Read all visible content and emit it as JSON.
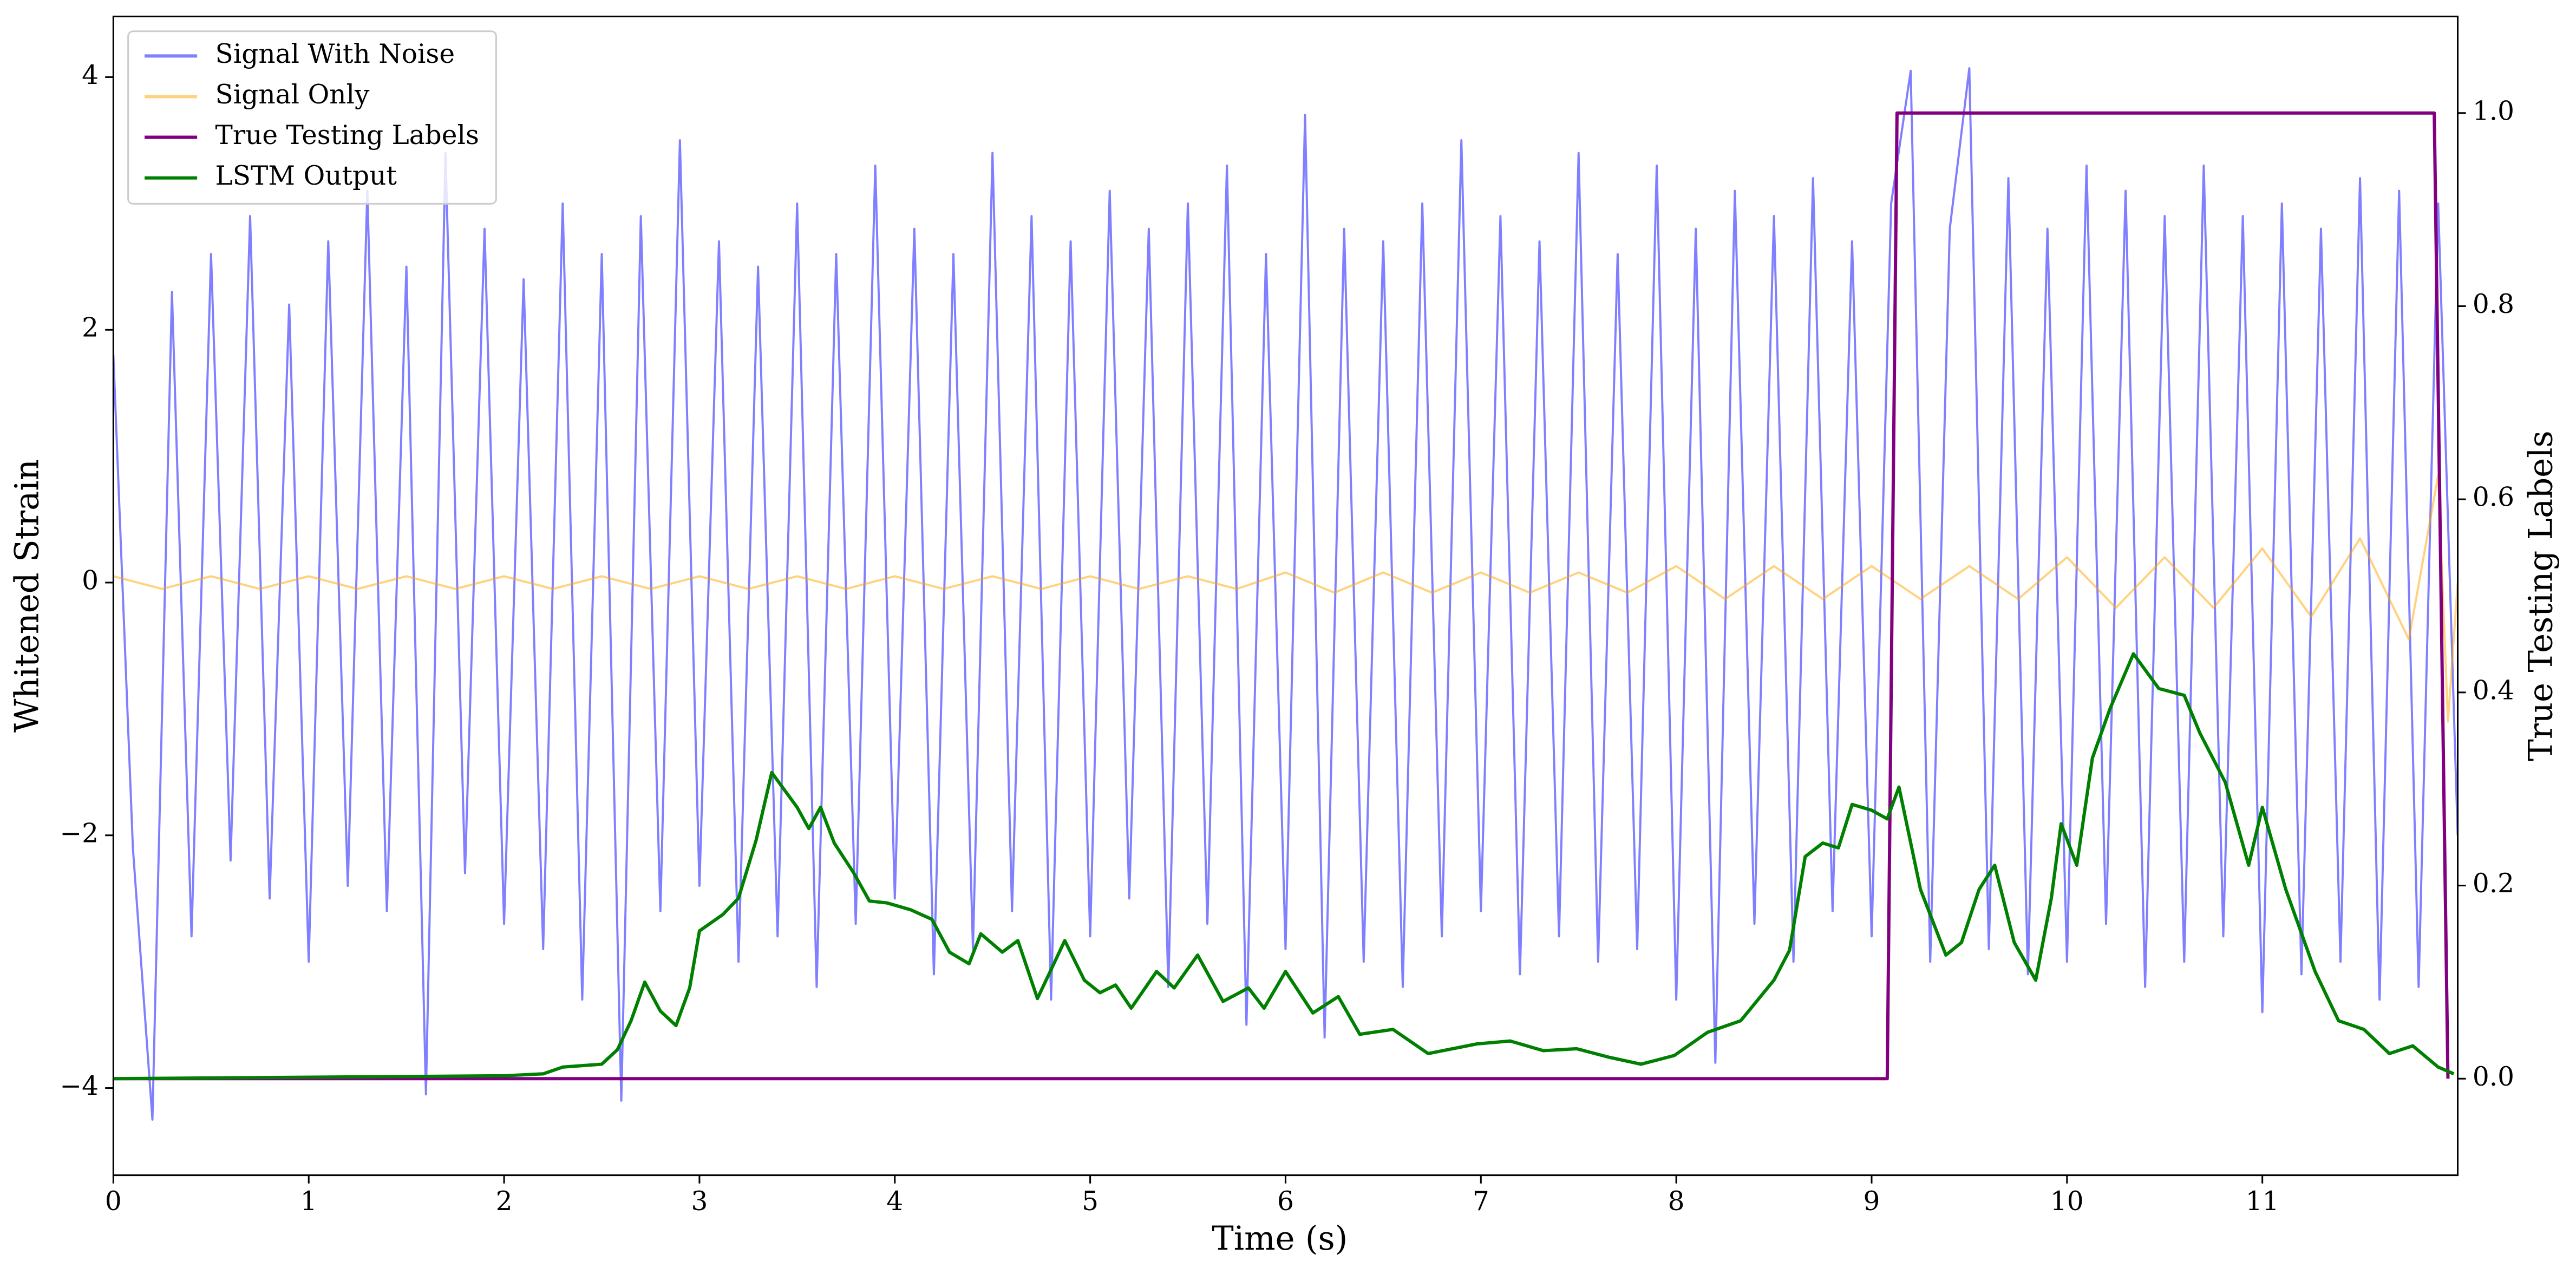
{
  "chart_data": {
    "type": "line",
    "xlabel": "Time (s)",
    "ylabel": "Whitened Strain",
    "y2label": "True Testing Labels",
    "xlim": [
      0,
      12
    ],
    "ylim": [
      -4.69,
      4.48
    ],
    "y2lim": [
      -0.1,
      1.1
    ],
    "xticks": [
      0,
      1,
      2,
      3,
      4,
      5,
      6,
      7,
      8,
      9,
      10,
      11
    ],
    "yticks": [
      {
        "value": -4,
        "label": "−4"
      },
      {
        "value": -2,
        "label": "−2"
      },
      0,
      2,
      4
    ],
    "y2ticks": [
      {
        "value": 0,
        "label": "0.0"
      },
      {
        "value": 0.2,
        "label": "0.2"
      },
      {
        "value": 0.4,
        "label": "0.4"
      },
      {
        "value": 0.6,
        "label": "0.6"
      },
      {
        "value": 0.8,
        "label": "0.8"
      },
      {
        "value": 1,
        "label": "1.0"
      }
    ],
    "legend": "upper left",
    "series": [
      {
        "name": "Signal With Noise",
        "color": "#0000ff",
        "opacity": 0.5,
        "x": [
          0,
          0.1,
          0.2,
          0.3,
          0.4,
          0.5,
          0.6,
          0.7,
          0.8,
          0.9,
          1,
          1.1,
          1.2,
          1.3,
          1.4,
          1.5,
          1.6,
          1.7,
          1.8,
          1.9,
          2,
          2.1,
          2.2,
          2.3,
          2.4,
          2.5,
          2.6,
          2.7,
          2.8,
          2.9,
          3,
          3.1,
          3.2,
          3.3,
          3.4,
          3.5,
          3.6,
          3.7,
          3.8,
          3.9,
          4,
          4.1,
          4.2,
          4.3,
          4.4,
          4.5,
          4.6,
          4.7,
          4.8,
          4.9,
          5,
          5.1,
          5.2,
          5.3,
          5.4,
          5.5,
          5.6,
          5.7,
          5.8,
          5.9,
          6,
          6.1,
          6.2,
          6.3,
          6.4,
          6.5,
          6.6,
          6.7,
          6.8,
          6.9,
          7,
          7.1,
          7.2,
          7.3,
          7.4,
          7.5,
          7.6,
          7.7,
          7.8,
          7.9,
          8,
          8.1,
          8.2,
          8.3,
          8.4,
          8.5,
          8.6,
          8.7,
          8.8,
          8.9,
          9,
          9.1,
          9.2,
          9.3,
          9.4,
          9.5,
          9.6,
          9.7,
          9.8,
          9.9,
          10,
          10.1,
          10.2,
          10.3,
          10.4,
          10.5,
          10.6,
          10.7,
          10.8,
          10.9,
          11,
          11.1,
          11.2,
          11.3,
          11.4,
          11.5,
          11.6,
          11.7,
          11.8,
          11.9,
          12
        ],
        "values": [
          1.8,
          -2.1,
          -4.25,
          2.3,
          -2.8,
          2.6,
          -2.2,
          2.9,
          -2.5,
          2.2,
          -3.0,
          2.7,
          -2.4,
          3.1,
          -2.6,
          2.5,
          -4.05,
          3.4,
          -2.3,
          2.8,
          -2.7,
          2.4,
          -2.9,
          3.0,
          -3.3,
          2.6,
          -4.1,
          2.9,
          -2.6,
          3.5,
          -2.4,
          2.7,
          -3.0,
          2.5,
          -2.8,
          3.0,
          -3.2,
          2.6,
          -2.7,
          3.3,
          -2.5,
          2.8,
          -3.1,
          2.6,
          -2.9,
          3.4,
          -2.6,
          2.9,
          -3.3,
          2.7,
          -2.8,
          3.1,
          -2.5,
          2.8,
          -3.2,
          3.0,
          -2.7,
          3.3,
          -3.5,
          2.6,
          -2.9,
          3.7,
          -3.6,
          2.8,
          -3.0,
          2.7,
          -3.2,
          3.0,
          -2.8,
          3.5,
          -2.6,
          2.9,
          -3.1,
          2.7,
          -2.8,
          3.4,
          -3.0,
          2.6,
          -2.9,
          3.3,
          -3.3,
          2.8,
          -3.8,
          3.1,
          -2.7,
          2.9,
          -3.0,
          3.2,
          -2.6,
          2.7,
          -2.8,
          3.0,
          4.05,
          -3.0,
          2.8,
          4.07,
          -2.9,
          3.2,
          -3.1,
          2.8,
          -3.0,
          3.3,
          -2.7,
          3.1,
          -3.2,
          2.9,
          -3.0,
          3.3,
          -2.8,
          2.9,
          -3.4,
          3.0,
          -3.1,
          2.8,
          -3.0,
          3.2,
          -3.3,
          3.1,
          -3.2,
          3.0,
          -2.0
        ]
      },
      {
        "name": "Signal Only",
        "color": "#ffa500",
        "opacity": 0.5,
        "x": [
          0,
          0.25,
          0.5,
          0.75,
          1,
          1.25,
          1.5,
          1.75,
          2,
          2.25,
          2.5,
          2.75,
          3,
          3.25,
          3.5,
          3.75,
          4,
          4.25,
          4.5,
          4.75,
          5,
          5.25,
          5.5,
          5.75,
          6,
          6.25,
          6.5,
          6.75,
          7,
          7.25,
          7.5,
          7.75,
          8,
          8.25,
          8.5,
          8.75,
          9,
          9.25,
          9.5,
          9.75,
          10,
          10.25,
          10.5,
          10.75,
          11,
          11.25,
          11.5,
          11.75,
          11.9,
          11.95,
          12
        ],
        "values": [
          0.05,
          -0.05,
          0.05,
          -0.05,
          0.05,
          -0.05,
          0.05,
          -0.05,
          0.05,
          -0.05,
          0.05,
          -0.05,
          0.05,
          -0.05,
          0.05,
          -0.05,
          0.05,
          -0.05,
          0.05,
          -0.05,
          0.05,
          -0.05,
          0.05,
          -0.05,
          0.08,
          -0.08,
          0.08,
          -0.08,
          0.08,
          -0.08,
          0.08,
          -0.08,
          0.13,
          -0.13,
          0.13,
          -0.13,
          0.13,
          -0.13,
          0.13,
          -0.13,
          0.2,
          -0.2,
          0.2,
          -0.2,
          0.27,
          -0.27,
          0.35,
          -0.45,
          0.85,
          -1.1,
          0
        ]
      },
      {
        "name": "True Testing Labels",
        "color": "#800080",
        "opacity": 1,
        "axis": "y2",
        "x": [
          0,
          9.08,
          9.13,
          11.88,
          11.95
        ],
        "values": [
          0,
          0,
          1,
          1,
          0
        ]
      },
      {
        "name": "LSTM Output",
        "color": "#008000",
        "opacity": 1,
        "axis": "y2",
        "x": [
          0,
          2,
          2.2,
          2.3,
          2.5,
          2.58,
          2.65,
          2.72,
          2.8,
          2.88,
          2.95,
          3,
          3.12,
          3.2,
          3.29,
          3.37,
          3.5,
          3.56,
          3.62,
          3.69,
          3.79,
          3.87,
          3.96,
          4.08,
          4.19,
          4.28,
          4.38,
          4.44,
          4.55,
          4.63,
          4.73,
          4.87,
          4.97,
          5.05,
          5.13,
          5.21,
          5.34,
          5.43,
          5.55,
          5.68,
          5.81,
          5.89,
          6,
          6.14,
          6.27,
          6.38,
          6.55,
          6.73,
          6.98,
          7.15,
          7.32,
          7.49,
          7.66,
          7.82,
          7.99,
          8.16,
          8.33,
          8.5,
          8.58,
          8.66,
          8.75,
          8.83,
          8.9,
          9,
          9.08,
          9.14,
          9.25,
          9.38,
          9.46,
          9.55,
          9.63,
          9.73,
          9.84,
          9.92,
          9.97,
          10.05,
          10.13,
          10.22,
          10.34,
          10.47,
          10.6,
          10.68,
          10.81,
          10.93,
          11,
          11.12,
          11.27,
          11.39,
          11.52,
          11.65,
          11.77,
          11.9,
          11.98
        ],
        "values": [
          0,
          0.003,
          0.005,
          0.012,
          0.015,
          0.03,
          0.06,
          0.1,
          0.07,
          0.055,
          0.094,
          0.153,
          0.17,
          0.187,
          0.247,
          0.317,
          0.281,
          0.259,
          0.281,
          0.244,
          0.213,
          0.184,
          0.182,
          0.175,
          0.165,
          0.131,
          0.119,
          0.15,
          0.131,
          0.143,
          0.083,
          0.143,
          0.102,
          0.089,
          0.097,
          0.073,
          0.111,
          0.094,
          0.128,
          0.08,
          0.094,
          0.073,
          0.111,
          0.068,
          0.085,
          0.046,
          0.051,
          0.026,
          0.036,
          0.039,
          0.029,
          0.031,
          0.022,
          0.015,
          0.024,
          0.048,
          0.06,
          0.102,
          0.133,
          0.23,
          0.244,
          0.239,
          0.284,
          0.278,
          0.269,
          0.302,
          0.196,
          0.128,
          0.141,
          0.196,
          0.221,
          0.141,
          0.102,
          0.187,
          0.264,
          0.221,
          0.332,
          0.383,
          0.44,
          0.404,
          0.397,
          0.358,
          0.307,
          0.221,
          0.281,
          0.196,
          0.111,
          0.06,
          0.051,
          0.026,
          0.034,
          0.012,
          0.005
        ]
      }
    ]
  }
}
